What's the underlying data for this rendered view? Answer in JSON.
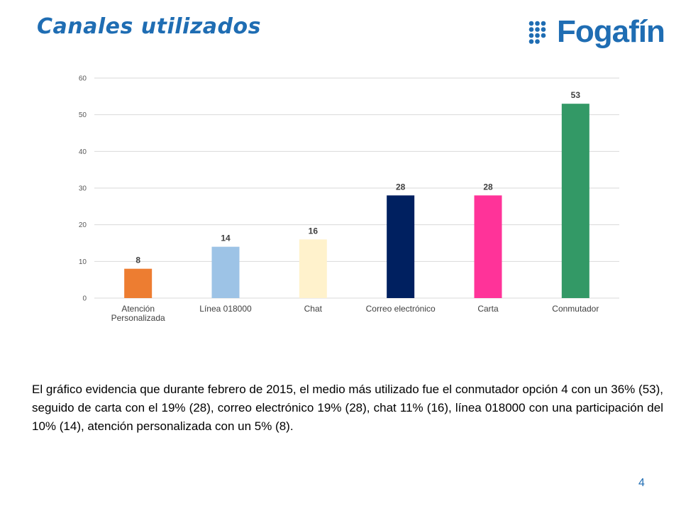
{
  "slide": {
    "title": "Canales utilizados",
    "logo_text": "Fogafín",
    "body": "El gráfico evidencia que durante febrero de 2015, el medio más utilizado fue el conmutador opción 4 con un 36% (53), seguido de carta con el 19% (28), correo electrónico 19% (28), chat 11% (16), línea 018000 con una participación del 10% (14), atención personalizada con un 5% (8).",
    "page_number": "4",
    "brand_color": "#1F6DB3"
  },
  "chart_data": {
    "type": "bar",
    "categories": [
      [
        "Atención",
        "Personalizada"
      ],
      [
        "Línea 018000"
      ],
      [
        "Chat"
      ],
      [
        "Correo electrónico"
      ],
      [
        "Carta"
      ],
      [
        "Conmutador"
      ]
    ],
    "values": [
      8,
      14,
      16,
      28,
      28,
      53
    ],
    "colors": [
      "#ED7D31",
      "#9DC3E6",
      "#FFF2CC",
      "#002060",
      "#FF3399",
      "#339966"
    ],
    "ylim": [
      0,
      60
    ],
    "yticks": [
      0,
      10,
      20,
      30,
      40,
      50,
      60
    ],
    "grid": true,
    "data_labels": true,
    "legend": "none"
  }
}
